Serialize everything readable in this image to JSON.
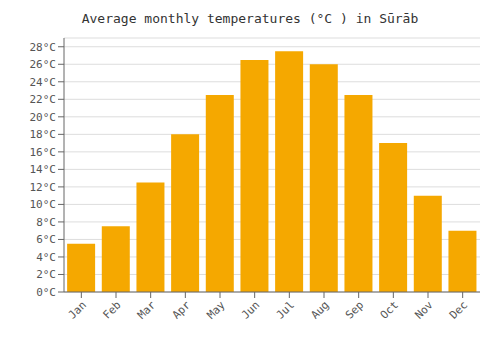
{
  "chart_data": {
    "type": "bar",
    "title": "Average monthly temperatures (°C ) in Sūrāb",
    "categories": [
      "Jan",
      "Feb",
      "Mar",
      "Apr",
      "May",
      "Jun",
      "Jul",
      "Aug",
      "Sep",
      "Oct",
      "Nov",
      "Dec"
    ],
    "values": [
      5.5,
      7.5,
      12.5,
      18.0,
      22.5,
      26.5,
      27.5,
      26.0,
      22.5,
      17.0,
      11.0,
      7.0
    ],
    "color": "#F5A800",
    "ylim": [
      0,
      29
    ],
    "yticks": [
      {
        "value": 0,
        "label": "0°C"
      },
      {
        "value": 2,
        "label": "2°C"
      },
      {
        "value": 4,
        "label": "4°C"
      },
      {
        "value": 6,
        "label": "6°C"
      },
      {
        "value": 8,
        "label": "8°C"
      },
      {
        "value": 10,
        "label": "10°C"
      },
      {
        "value": 12,
        "label": "12°C"
      },
      {
        "value": 14,
        "label": "14°C"
      },
      {
        "value": 16,
        "label": "16°C"
      },
      {
        "value": 18,
        "label": "18°C"
      },
      {
        "value": 20,
        "label": "20°C"
      },
      {
        "value": 22,
        "label": "22°C"
      },
      {
        "value": 24,
        "label": "24°C"
      },
      {
        "value": 26,
        "label": "26°C"
      },
      {
        "value": 28,
        "label": "28°C"
      }
    ],
    "grid": true
  }
}
